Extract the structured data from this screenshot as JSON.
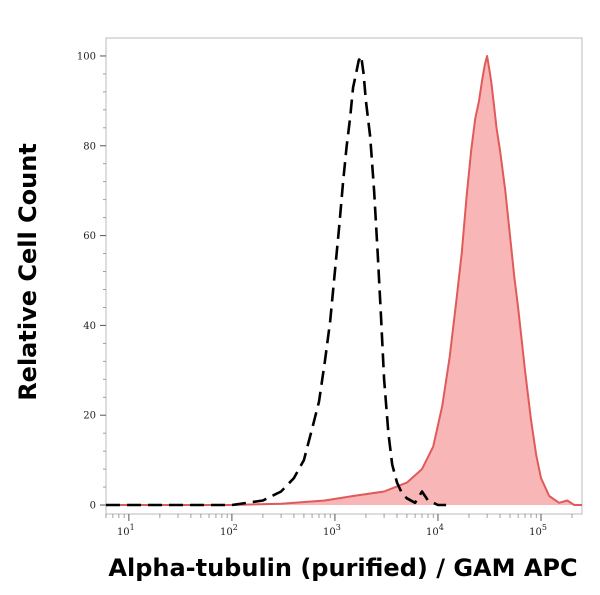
{
  "chart_data": {
    "type": "area",
    "title": "",
    "xlabel": "Alpha-tubulin (purified) / GAM APC",
    "ylabel": "Relative Cell Count",
    "x_scale": "log",
    "xlim": [
      6,
      250000
    ],
    "ylim": [
      -2,
      104
    ],
    "y_ticks": [
      0,
      20,
      40,
      60,
      80,
      100
    ],
    "x_ticks": [
      {
        "value": 10,
        "base": "10",
        "exp": "1"
      },
      {
        "value": 100,
        "base": "10",
        "exp": "2"
      },
      {
        "value": 1000,
        "base": "10",
        "exp": "3"
      },
      {
        "value": 10000,
        "base": "10",
        "exp": "4"
      },
      {
        "value": 100000,
        "base": "10",
        "exp": "5"
      }
    ],
    "grid": false,
    "legend": "none",
    "series": [
      {
        "style": "filled",
        "fill": "#f9b6b6",
        "stroke": "#e05a5a",
        "x": [
          6,
          10,
          30,
          100,
          300,
          800,
          1500,
          3000,
          5000,
          7000,
          9000,
          11000,
          13000,
          15000,
          17000,
          19000,
          21000,
          23000,
          25000,
          27000,
          28500,
          30000,
          31500,
          33000,
          35000,
          37000,
          40000,
          45000,
          50000,
          55000,
          60000,
          70000,
          80000,
          90000,
          100000,
          120000,
          150000,
          180000,
          210000,
          250000
        ],
        "y": [
          0,
          0,
          0,
          0,
          0.3,
          1,
          2,
          3,
          5,
          8,
          13,
          22,
          33,
          45,
          56,
          69,
          79,
          86,
          90,
          95,
          98,
          100,
          97,
          94,
          89,
          84,
          79,
          70,
          60,
          51,
          44,
          30,
          19,
          11,
          6,
          2,
          0.5,
          1,
          0,
          0
        ]
      },
      {
        "style": "dashed",
        "stroke": "#000000",
        "x": [
          6,
          10,
          50,
          100,
          200,
          300,
          400,
          500,
          600,
          700,
          800,
          900,
          1000,
          1100,
          1200,
          1300,
          1400,
          1500,
          1600,
          1700,
          1800,
          1900,
          2000,
          2200,
          2400,
          2600,
          2800,
          3000,
          3300,
          3600,
          4000,
          4500,
          5000,
          6000,
          7000,
          8000,
          10000,
          12000
        ],
        "y": [
          0,
          0,
          0,
          0,
          1,
          3,
          6,
          10,
          17,
          23,
          32,
          41,
          52,
          62,
          72,
          80,
          86,
          93,
          96,
          99,
          100,
          96,
          90,
          82,
          70,
          56,
          42,
          28,
          16,
          9,
          5,
          2.5,
          1.5,
          0.5,
          3,
          1,
          0,
          0
        ]
      }
    ]
  }
}
